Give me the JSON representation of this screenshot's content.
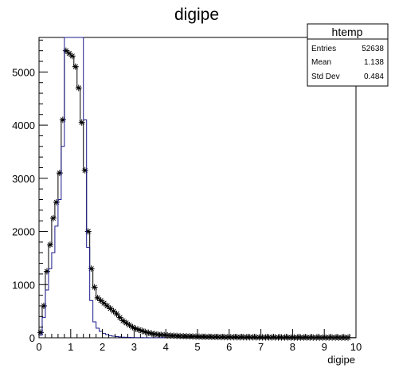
{
  "chart_data": {
    "type": "histogram",
    "title": "digipe",
    "xlabel": "digipe",
    "ylabel": "",
    "xlim": [
      0,
      10
    ],
    "ylim": [
      0,
      5650
    ],
    "x_ticks": [
      0,
      1,
      2,
      3,
      4,
      5,
      6,
      7,
      8,
      9,
      10
    ],
    "y_ticks": [
      0,
      1000,
      2000,
      3000,
      4000,
      5000
    ],
    "grid": false,
    "stats_box": {
      "name": "htemp",
      "rows": [
        {
          "label": "Entries",
          "value": "52638"
        },
        {
          "label": "Mean",
          "value": "1.138"
        },
        {
          "label": "Std Dev",
          "value": "0.484"
        }
      ],
      "placement": "top-right"
    },
    "bin_width": 0.1,
    "series": [
      {
        "style": "step",
        "color": "#000000",
        "x": [
          0.05,
          0.15,
          0.25,
          0.35,
          0.45,
          0.55,
          0.65,
          0.75,
          0.85,
          0.95,
          1.05,
          1.15,
          1.25,
          1.35,
          1.45,
          1.55,
          1.65,
          1.75,
          1.85,
          1.95,
          2.05,
          2.15,
          2.25,
          2.35,
          2.45,
          2.55,
          2.65,
          2.75,
          2.85,
          2.95,
          3.05,
          3.15,
          3.25,
          3.35,
          3.45,
          3.55,
          3.65,
          3.75,
          3.85,
          3.95,
          4.05,
          4.15,
          4.25,
          4.35,
          4.45,
          4.55,
          4.65,
          4.75,
          4.85,
          4.95,
          5.05,
          5.15,
          5.25,
          5.35,
          5.45,
          5.55,
          5.65,
          5.75,
          5.85,
          5.95,
          6.05,
          6.15,
          6.25,
          6.35,
          6.45,
          6.55,
          6.65,
          6.75,
          6.85,
          6.95,
          7.05,
          7.15,
          7.25,
          7.35,
          7.45,
          7.55,
          7.65,
          7.75,
          7.85,
          7.95,
          8.05,
          8.15,
          8.25,
          8.35,
          8.45,
          8.55,
          8.65,
          8.75,
          8.85,
          8.95,
          9.05,
          9.15,
          9.25,
          9.35,
          9.45,
          9.55,
          9.65,
          9.75,
          9.85,
          9.95
        ],
        "values": [
          100,
          600,
          1250,
          1750,
          2250,
          2550,
          3100,
          4100,
          5400,
          5350,
          5300,
          5100,
          4700,
          4050,
          3150,
          2000,
          1300,
          950,
          750,
          700,
          650,
          600,
          550,
          500,
          450,
          380,
          320,
          280,
          240,
          200,
          170,
          150,
          130,
          110,
          95,
          80,
          70,
          60,
          55,
          50,
          45,
          40,
          38,
          35,
          32,
          30,
          28,
          26,
          24,
          22,
          20,
          19,
          18,
          17,
          16,
          15,
          14,
          13,
          12,
          12,
          11,
          11,
          10,
          10,
          10,
          9,
          9,
          9,
          8,
          8,
          8,
          7,
          7,
          7,
          7,
          6,
          6,
          6,
          6,
          5,
          5,
          5,
          5,
          5,
          5,
          4,
          4,
          4,
          4,
          4,
          4,
          4,
          4,
          4,
          3,
          3,
          3,
          3,
          3,
          3
        ]
      },
      {
        "style": "markers",
        "marker": "asterisk",
        "color": "#000000",
        "x": [
          0.05,
          0.15,
          0.25,
          0.35,
          0.45,
          0.55,
          0.65,
          0.75,
          0.85,
          0.95,
          1.05,
          1.15,
          1.25,
          1.35,
          1.45,
          1.55,
          1.65,
          1.75,
          1.85,
          1.95,
          2.05,
          2.15,
          2.25,
          2.35,
          2.45,
          2.55,
          2.65,
          2.75,
          2.85,
          2.95,
          3.05,
          3.15,
          3.25,
          3.35,
          3.45,
          3.55,
          3.65,
          3.75,
          3.85,
          3.95,
          4.05,
          4.15,
          4.25,
          4.35,
          4.45,
          4.55,
          4.65,
          4.75,
          4.85,
          4.95,
          5.05,
          5.15,
          5.25,
          5.35,
          5.45,
          5.55,
          5.65,
          5.75,
          5.85,
          5.95,
          6.05,
          6.15,
          6.25,
          6.35,
          6.45,
          6.55,
          6.65,
          6.75,
          6.85,
          6.95,
          7.05,
          7.15,
          7.25,
          7.35,
          7.45,
          7.55,
          7.65,
          7.75,
          7.85,
          7.95,
          8.05,
          8.15,
          8.25,
          8.35,
          8.45,
          8.55,
          8.65,
          8.75,
          8.85,
          8.95,
          9.05,
          9.15,
          9.25,
          9.35,
          9.45,
          9.55,
          9.65,
          9.75
        ],
        "values": [
          100,
          600,
          1250,
          1750,
          2250,
          2550,
          3100,
          4100,
          5400,
          5350,
          5300,
          5100,
          4700,
          4050,
          3150,
          2000,
          1300,
          950,
          750,
          700,
          650,
          600,
          550,
          500,
          450,
          380,
          320,
          280,
          240,
          200,
          170,
          150,
          130,
          110,
          95,
          80,
          70,
          60,
          55,
          50,
          45,
          40,
          38,
          35,
          32,
          30,
          28,
          26,
          24,
          22,
          20,
          19,
          18,
          17,
          16,
          15,
          14,
          13,
          12,
          12,
          11,
          11,
          10,
          10,
          10,
          9,
          9,
          9,
          8,
          8,
          8,
          7,
          7,
          7,
          7,
          6,
          6,
          6,
          6,
          5,
          5,
          5,
          5,
          5,
          5,
          4,
          4,
          4,
          4,
          4,
          4,
          4,
          4,
          4,
          3,
          3,
          3,
          3
        ]
      },
      {
        "style": "step",
        "color": "#1a1a8c",
        "x": [
          0.05,
          0.15,
          0.25,
          0.35,
          0.45,
          0.55,
          0.65,
          0.75,
          0.85,
          0.95,
          1.05,
          1.15,
          1.25,
          1.35,
          1.45,
          1.55,
          1.65,
          1.75,
          1.85,
          1.95,
          2.05,
          2.15,
          2.25,
          2.35,
          2.45,
          2.55,
          2.65,
          2.75,
          2.85,
          2.95,
          3.05,
          3.15,
          3.25,
          3.35,
          3.45,
          3.55,
          3.65,
          3.75,
          3.85,
          3.95
        ],
        "values": [
          50,
          380,
          900,
          1300,
          1600,
          2100,
          2600,
          3600,
          5650,
          5650,
          5650,
          5650,
          5650,
          5650,
          4100,
          1700,
          700,
          300,
          180,
          120,
          80,
          60,
          40,
          30,
          22,
          16,
          12,
          9,
          7,
          5,
          4,
          3,
          3,
          2,
          2,
          1,
          1,
          1,
          1,
          1
        ]
      }
    ]
  }
}
